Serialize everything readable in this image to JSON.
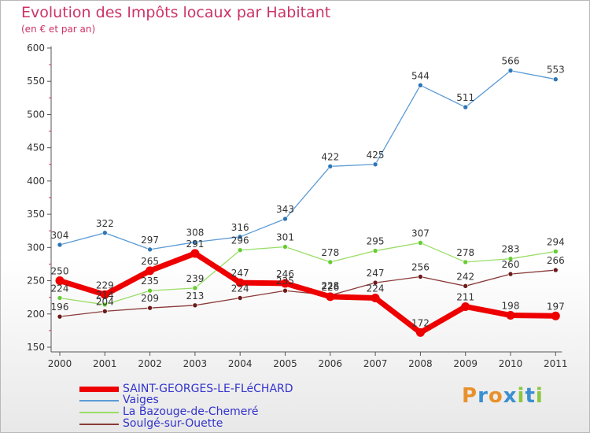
{
  "title": "Evolution des Impôts locaux par Habitant",
  "subtitle": "(en € et par an)",
  "logo": {
    "text": "Proxiti"
  },
  "chart_data": {
    "type": "line",
    "title": "Evolution des Impôts locaux par Habitant",
    "ylabel": "(en € et par an)",
    "xlabel": "",
    "categories": [
      "2000",
      "2001",
      "2002",
      "2003",
      "2004",
      "2005",
      "2006",
      "2007",
      "2008",
      "2009",
      "2010",
      "2011"
    ],
    "ylim": [
      150,
      600
    ],
    "yticks": [
      150,
      200,
      250,
      300,
      350,
      400,
      450,
      500,
      550,
      600
    ],
    "grid": false,
    "legend_position": "bottom-left",
    "series": [
      {
        "name": "Vaiges",
        "color": "#5b9bd5",
        "point": "#2e75b6",
        "values": [
          304,
          322,
          297,
          308,
          316,
          343,
          422,
          425,
          544,
          511,
          566,
          553
        ],
        "labels": [
          "304",
          "322",
          "297",
          "308",
          "316",
          "343",
          "422",
          "425",
          "544",
          "511",
          "566",
          "553"
        ]
      },
      {
        "name": "La Bazouge-de-Chemeré",
        "color": "#99dd66",
        "point": "#66cc33",
        "values": [
          224,
          214,
          235,
          239,
          296,
          301,
          278,
          295,
          307,
          278,
          283,
          294
        ],
        "labels": [
          "224",
          "214",
          "235",
          "239",
          "296",
          "301",
          "278",
          "295",
          "307",
          "278",
          "283",
          "294"
        ]
      },
      {
        "name": "Soulgé-sur-Ouette",
        "color": "#8b3a3a",
        "point": "#6b1a1a",
        "values": [
          196,
          204,
          209,
          213,
          224,
          235,
          228,
          247,
          256,
          242,
          260,
          266
        ],
        "labels": [
          "196",
          "204",
          "209",
          "213",
          "224",
          "235",
          "228",
          "247",
          "256",
          "242",
          "260",
          "266"
        ]
      },
      {
        "name": "SAINT-GEORGES-LE-FLéCHARD",
        "color": "#ee0000",
        "point": "#ee0000",
        "values": [
          250,
          229,
          265,
          291,
          247,
          246,
          226,
          224,
          172,
          211,
          198,
          197
        ],
        "labels": [
          "250",
          "229",
          "265",
          "291",
          "247",
          "246",
          "226",
          "224",
          "172",
          "211",
          "198",
          "197"
        ]
      }
    ]
  },
  "legend": [
    {
      "label": "SAINT-GEORGES-LE-FLéCHARD",
      "color": "#ee0000",
      "text_color": "#3333cc"
    },
    {
      "label": "Vaiges",
      "color": "#5b9bd5",
      "text_color": "#3333cc"
    },
    {
      "label": "La Bazouge-de-Chemeré",
      "color": "#99dd66",
      "text_color": "#3333cc"
    },
    {
      "label": "Soulgé-sur-Ouette",
      "color": "#8b3a3a",
      "text_color": "#3333cc"
    }
  ]
}
